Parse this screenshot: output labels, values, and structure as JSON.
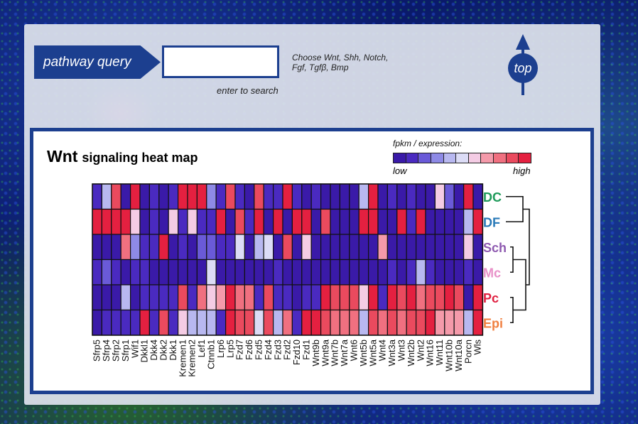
{
  "header": {
    "query_label": "pathway query",
    "enter_hint": "enter to search",
    "choose_hint": "Choose Wnt, Shh, Notch, Fgf, Tgfβ, Bmp",
    "top_label": "top"
  },
  "chart": {
    "gene_label": "Wnt",
    "title_rest": "signaling heat map",
    "legend_title": "fpkm / expression:",
    "legend_low": "low",
    "legend_high": "high",
    "legend_colors": [
      "#3a1aa8",
      "#4a2ac0",
      "#6a5ad8",
      "#8e8ae6",
      "#b8b8f0",
      "#dcdcf6",
      "#f4cce4",
      "#f49aaa",
      "#f07080",
      "#ea4a5e",
      "#e42040"
    ]
  },
  "chart_data": {
    "type": "heatmap",
    "title": "Wnt signaling heat map",
    "columns": [
      "Sfrp5",
      "Sfrp4",
      "Sfrp2",
      "Sfrp1",
      "Wif1",
      "Dkkl1",
      "Dkk4",
      "Dkk2",
      "Dkk1",
      "Kremen1",
      "Kremen2",
      "Lef1",
      "Ctnnb1",
      "Lrp6",
      "Lrp5",
      "Fzd7",
      "Fzd6",
      "Fzd5",
      "Fzd4",
      "Fzd3",
      "Fzd2",
      "Fzd10",
      "Fzd1",
      "Wnt9b",
      "Wnt9a",
      "Wnt7b",
      "Wnt7a",
      "Wnt6",
      "Wnt5b",
      "Wnt5a",
      "Wnt4",
      "Wnt3a",
      "Wnt3",
      "Wnt2b",
      "Wnt2",
      "Wnt16",
      "Wnt11",
      "Wnt10b",
      "Wnt10a",
      "Porcn",
      "Wls"
    ],
    "rows": [
      {
        "label": "DC",
        "color": "#1e9a5a"
      },
      {
        "label": "DF",
        "color": "#2a7ab8"
      },
      {
        "label": "Sch",
        "color": "#8e5ab0"
      },
      {
        "label": "Mc",
        "color": "#e890c8"
      },
      {
        "label": "Pc",
        "color": "#e02040"
      },
      {
        "label": "Epi",
        "color": "#f08040"
      }
    ],
    "values": [
      [
        1,
        4,
        9,
        0,
        10,
        0,
        1,
        0,
        1,
        10,
        10,
        10,
        3,
        1,
        9,
        1,
        0,
        9,
        1,
        1,
        10,
        1,
        0,
        1,
        0,
        0,
        0,
        0,
        4,
        10,
        0,
        1,
        0,
        1,
        0,
        0,
        6,
        2,
        0,
        10,
        0
      ],
      [
        10,
        10,
        10,
        10,
        6,
        0,
        1,
        0,
        6,
        1,
        6,
        1,
        1,
        10,
        0,
        9,
        1,
        10,
        0,
        10,
        0,
        10,
        10,
        0,
        9,
        0,
        0,
        0,
        10,
        10,
        0,
        0,
        10,
        1,
        10,
        0,
        0,
        0,
        0,
        4,
        10
      ],
      [
        0,
        0,
        0,
        8,
        3,
        1,
        1,
        10,
        0,
        1,
        0,
        2,
        2,
        1,
        1,
        5,
        0,
        4,
        5,
        0,
        9,
        0,
        6,
        0,
        0,
        0,
        0,
        0,
        0,
        0,
        7,
        0,
        0,
        0,
        0,
        0,
        0,
        0,
        0,
        6,
        0
      ],
      [
        1,
        2,
        1,
        0,
        1,
        1,
        0,
        0,
        0,
        0,
        0,
        0,
        5,
        0,
        0,
        0,
        0,
        0,
        0,
        1,
        0,
        0,
        0,
        0,
        0,
        0,
        0,
        0,
        0,
        0,
        0,
        1,
        0,
        1,
        4,
        1,
        0,
        0,
        0,
        1,
        0
      ],
      [
        0,
        0,
        0,
        4,
        0,
        1,
        1,
        1,
        1,
        9,
        1,
        8,
        6,
        7,
        10,
        8,
        8,
        1,
        9,
        1,
        1,
        0,
        1,
        1,
        10,
        9,
        9,
        9,
        6,
        10,
        1,
        10,
        9,
        10,
        8,
        9,
        9,
        10,
        9,
        0,
        10
      ],
      [
        0,
        1,
        1,
        1,
        1,
        10,
        1,
        9,
        1,
        6,
        4,
        4,
        4,
        1,
        10,
        9,
        9,
        5,
        9,
        4,
        8,
        1,
        10,
        10,
        9,
        8,
        8,
        8,
        4,
        9,
        8,
        9,
        8,
        9,
        9,
        10,
        7,
        7,
        7,
        4,
        10
      ]
    ],
    "scale": "0 = low, 10 = high",
    "dendrogram": "DC+DF, Sch+Mc, Pc+Epi"
  }
}
